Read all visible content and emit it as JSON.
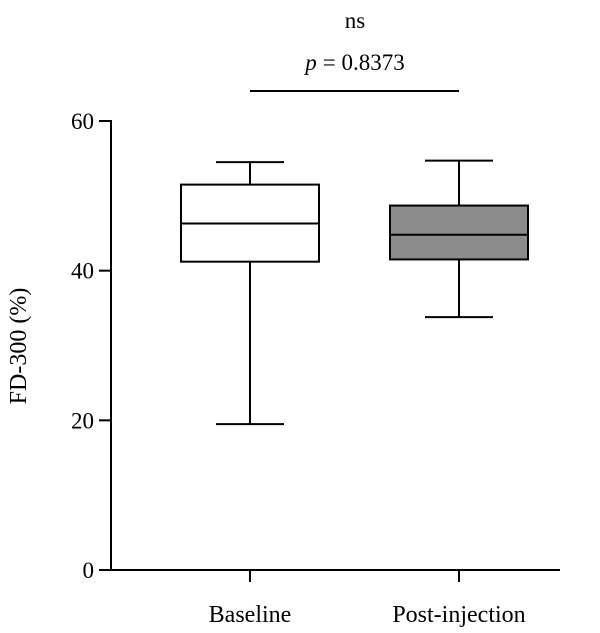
{
  "chart_data": {
    "type": "box",
    "ylabel": "FD-300 (%)",
    "xlabel": "",
    "ylim": [
      0,
      60
    ],
    "yticks": [
      0,
      20,
      40,
      60
    ],
    "categories": [
      "Baseline",
      "Post-injection"
    ],
    "boxes": [
      {
        "category": "Baseline",
        "min": 19.5,
        "q1": 41.2,
        "median": 46.3,
        "q3": 51.5,
        "max": 54.5,
        "fill": "#ffffff"
      },
      {
        "category": "Post-injection",
        "min": 33.8,
        "q1": 41.5,
        "median": 44.8,
        "q3": 48.7,
        "max": 54.7,
        "fill": "#8c8c8c"
      }
    ],
    "annotation": {
      "significance": "ns",
      "p_label": "p",
      "p_value_text": "= 0.8373"
    },
    "grid": false
  }
}
